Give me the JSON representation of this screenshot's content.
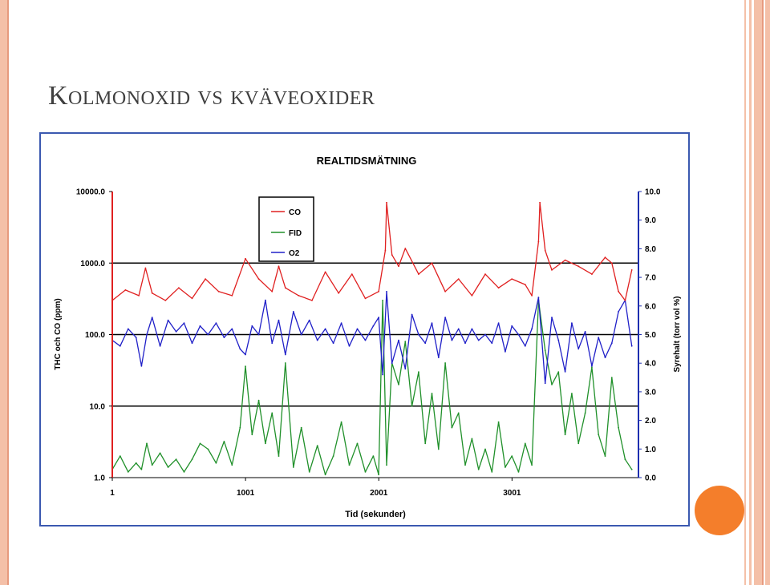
{
  "slide": {
    "title": "Kolmonoxid vs kväveoxider"
  },
  "theme": {
    "accent_left": "#f4c0a8",
    "accent_right": "#e79a7e",
    "orange_dot": "#f47e2b",
    "frame_border": "#3b59b0"
  },
  "chart_data": {
    "type": "line",
    "title": "REALTIDSMÄTNING",
    "xlabel": "Tid (sekunder)",
    "ylabel_left": "THC och CO (ppm)",
    "ylabel_right": "Syrehalt (torr vol %)",
    "x_ticks": [
      "1",
      "1001",
      "2001",
      "3001"
    ],
    "x_range": [
      1,
      3950
    ],
    "y_left": {
      "scale": "log",
      "range": [
        1,
        10000
      ],
      "ticks": [
        "10000.0",
        "1000.0",
        "100.0",
        "10.0",
        "1.0"
      ]
    },
    "y_right": {
      "scale": "linear",
      "range": [
        0,
        10
      ],
      "ticks": [
        "10.0",
        "9.0",
        "8.0",
        "7.0",
        "6.0",
        "5.0",
        "4.0",
        "3.0",
        "2.0",
        "1.0",
        "0.0"
      ]
    },
    "gridlines_left": [
      1000,
      100,
      10
    ],
    "legend": {
      "position": "top-left",
      "entries": [
        "CO",
        "FID",
        "O2"
      ]
    },
    "series": [
      {
        "name": "CO",
        "axis": "left",
        "color": "#e02020",
        "x": [
          1,
          100,
          200,
          250,
          300,
          400,
          500,
          600,
          700,
          800,
          900,
          1000,
          1100,
          1200,
          1250,
          1300,
          1400,
          1500,
          1600,
          1700,
          1800,
          1900,
          2000,
          2050,
          2060,
          2100,
          2150,
          2200,
          2300,
          2400,
          2500,
          2600,
          2700,
          2800,
          2900,
          3000,
          3100,
          3150,
          3200,
          3210,
          3250,
          3300,
          3400,
          3500,
          3600,
          3700,
          3750,
          3800,
          3850,
          3900
        ],
        "y": [
          300,
          420,
          350,
          850,
          380,
          300,
          450,
          320,
          600,
          400,
          350,
          1150,
          600,
          400,
          900,
          450,
          350,
          300,
          750,
          380,
          700,
          320,
          400,
          1500,
          7000,
          1300,
          900,
          1600,
          700,
          1000,
          400,
          600,
          350,
          700,
          450,
          600,
          500,
          350,
          2000,
          7000,
          1500,
          800,
          1100,
          900,
          700,
          1200,
          1000,
          400,
          300,
          800
        ]
      },
      {
        "name": "FID",
        "axis": "left",
        "color": "#20902a",
        "x": [
          1,
          60,
          120,
          180,
          220,
          260,
          300,
          360,
          420,
          480,
          540,
          600,
          660,
          720,
          780,
          840,
          900,
          960,
          1000,
          1050,
          1100,
          1150,
          1200,
          1250,
          1300,
          1360,
          1420,
          1480,
          1540,
          1600,
          1660,
          1720,
          1780,
          1840,
          1900,
          1960,
          2000,
          2030,
          2060,
          2100,
          2150,
          2200,
          2250,
          2300,
          2350,
          2400,
          2450,
          2500,
          2550,
          2600,
          2650,
          2700,
          2750,
          2800,
          2850,
          2900,
          2950,
          3000,
          3050,
          3100,
          3150,
          3200,
          3250,
          3300,
          3350,
          3400,
          3450,
          3500,
          3550,
          3600,
          3650,
          3700,
          3750,
          3800,
          3850,
          3900
        ],
        "y": [
          1.3,
          2.0,
          1.2,
          1.6,
          1.3,
          3.0,
          1.5,
          2.2,
          1.4,
          1.8,
          1.2,
          1.8,
          3.0,
          2.5,
          1.6,
          3.2,
          1.5,
          5.0,
          36,
          4.0,
          12,
          3.0,
          8.0,
          2.0,
          40,
          1.4,
          5.0,
          1.2,
          2.8,
          1.1,
          2.0,
          6.0,
          1.5,
          3.0,
          1.2,
          2.0,
          1.1,
          300,
          1.5,
          40,
          20,
          80,
          10,
          30,
          3.0,
          15,
          2.5,
          40,
          5.0,
          8.0,
          1.5,
          3.5,
          1.3,
          2.5,
          1.2,
          6.0,
          1.4,
          2.0,
          1.2,
          3.0,
          1.5,
          300,
          60,
          20,
          30,
          4.0,
          15,
          3.0,
          8.0,
          35,
          4.0,
          2.0,
          25,
          5.0,
          1.8,
          1.3
        ]
      },
      {
        "name": "O2",
        "axis": "right",
        "color": "#2020c8",
        "x": [
          1,
          60,
          120,
          180,
          220,
          260,
          300,
          360,
          420,
          480,
          540,
          600,
          660,
          720,
          780,
          840,
          900,
          960,
          1000,
          1050,
          1100,
          1150,
          1200,
          1250,
          1300,
          1360,
          1420,
          1480,
          1540,
          1600,
          1660,
          1720,
          1780,
          1840,
          1900,
          1960,
          2000,
          2030,
          2060,
          2100,
          2150,
          2200,
          2250,
          2300,
          2350,
          2400,
          2450,
          2500,
          2550,
          2600,
          2650,
          2700,
          2750,
          2800,
          2850,
          2900,
          2950,
          3000,
          3050,
          3100,
          3150,
          3200,
          3250,
          3300,
          3350,
          3400,
          3450,
          3500,
          3550,
          3600,
          3650,
          3700,
          3750,
          3800,
          3850,
          3900
        ],
        "y": [
          4.8,
          4.6,
          5.2,
          4.9,
          3.9,
          5.0,
          5.6,
          4.6,
          5.5,
          5.1,
          5.4,
          4.7,
          5.3,
          5.0,
          5.4,
          4.9,
          5.2,
          4.5,
          4.3,
          5.3,
          5.0,
          6.2,
          4.7,
          5.5,
          4.3,
          5.8,
          5.0,
          5.5,
          4.8,
          5.2,
          4.7,
          5.4,
          4.6,
          5.2,
          4.8,
          5.3,
          5.6,
          3.6,
          6.5,
          4.0,
          4.8,
          3.8,
          5.7,
          5.0,
          4.7,
          5.4,
          4.2,
          5.6,
          4.8,
          5.2,
          4.7,
          5.2,
          4.8,
          5.0,
          4.7,
          5.4,
          4.4,
          5.3,
          5.0,
          4.6,
          5.2,
          6.3,
          3.3,
          5.6,
          4.8,
          3.7,
          5.4,
          4.5,
          5.1,
          3.9,
          4.9,
          4.2,
          4.7,
          5.8,
          6.2,
          4.6
        ]
      }
    ]
  }
}
